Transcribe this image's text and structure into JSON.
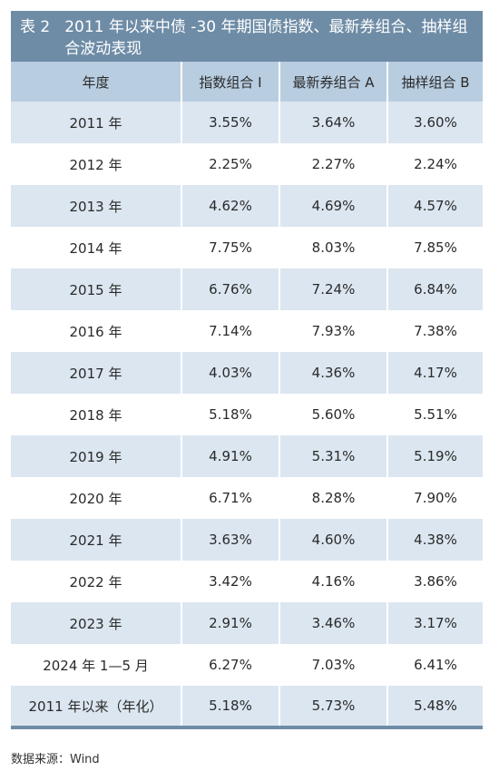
{
  "title": {
    "number": "表 2",
    "text": "2011 年以来中债 -30 年期国债指数、最新券组合、抽样组合波动表现"
  },
  "table": {
    "headers": [
      "年度",
      "指数组合 I",
      "最新券组合 A",
      "抽样组合 B"
    ],
    "rows": [
      [
        "2011 年",
        "3.55%",
        "3.64%",
        "3.60%"
      ],
      [
        "2012 年",
        "2.25%",
        "2.27%",
        "2.24%"
      ],
      [
        "2013 年",
        "4.62%",
        "4.69%",
        "4.57%"
      ],
      [
        "2014 年",
        "7.75%",
        "8.03%",
        "7.85%"
      ],
      [
        "2015 年",
        "6.76%",
        "7.24%",
        "6.84%"
      ],
      [
        "2016 年",
        "7.14%",
        "7.93%",
        "7.38%"
      ],
      [
        "2017 年",
        "4.03%",
        "4.36%",
        "4.17%"
      ],
      [
        "2018 年",
        "5.18%",
        "5.60%",
        "5.51%"
      ],
      [
        "2019 年",
        "4.91%",
        "5.31%",
        "5.19%"
      ],
      [
        "2020 年",
        "6.71%",
        "8.28%",
        "7.90%"
      ],
      [
        "2021 年",
        "3.63%",
        "4.60%",
        "4.38%"
      ],
      [
        "2022 年",
        "3.42%",
        "4.16%",
        "3.86%"
      ],
      [
        "2023 年",
        "2.91%",
        "3.46%",
        "3.17%"
      ],
      [
        "2024 年 1—5 月",
        "6.27%",
        "7.03%",
        "6.41%"
      ],
      [
        "2011 年以来（年化）",
        "5.18%",
        "5.73%",
        "5.48%"
      ]
    ]
  },
  "source": "数据来源：Wind",
  "colors": {
    "title_bg": "#6e8ca6",
    "header_bg": "#b8cde0",
    "stripe_bg": "#dbe6f0"
  }
}
